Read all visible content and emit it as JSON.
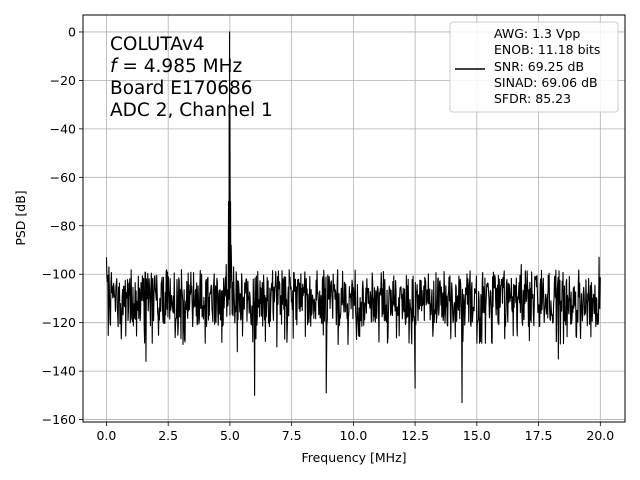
{
  "chart_data": {
    "type": "line",
    "xlabel": "Frequency [MHz]",
    "ylabel": "PSD [dB]",
    "xlim": [
      -0.95,
      21.0
    ],
    "ylim": [
      -161,
      7
    ],
    "grid": true,
    "xticks": [
      0.0,
      2.5,
      5.0,
      7.5,
      10.0,
      12.5,
      15.0,
      17.5,
      20.0
    ],
    "xtick_labels": [
      "0.0",
      "2.5",
      "5.0",
      "7.5",
      "10.0",
      "12.5",
      "15.0",
      "17.5",
      "20.0"
    ],
    "yticks": [
      0,
      -20,
      -40,
      -60,
      -80,
      -100,
      -120,
      -140,
      -160
    ],
    "ytick_labels": [
      "0",
      "−20",
      "−40",
      "−60",
      "−80",
      "−100",
      "−120",
      "−140",
      "−160"
    ],
    "annotation": {
      "line1": "COLUTAv4",
      "line2_var": "f",
      "line2_rest": " = 4.985 MHz",
      "line3": "Board E170686",
      "line4": "ADC 2, Channel 1"
    },
    "legend": {
      "placement": "top-right",
      "lines": [
        "AWG: 1.3 Vpp",
        "ENOB: 11.18 bits",
        "SNR: 69.25 dB",
        "SINAD: 69.06 dB",
        "SFDR: 85.23"
      ]
    },
    "series": [
      {
        "color": "#000000",
        "fundamental": {
          "x": 4.985,
          "y": 0
        },
        "noise_floor_mean": -111,
        "noise_floor_band": [
          -125,
          -100
        ],
        "spurs": [
          {
            "x": 0.0,
            "y": -93
          },
          {
            "x": 0.1,
            "y": -97
          },
          {
            "x": 1.6,
            "y": -136
          },
          {
            "x": 3.1,
            "y": -129
          },
          {
            "x": 4.85,
            "y": -96
          },
          {
            "x": 4.95,
            "y": -86
          },
          {
            "x": 5.05,
            "y": -88
          },
          {
            "x": 5.15,
            "y": -97
          },
          {
            "x": 5.3,
            "y": -132
          },
          {
            "x": 6.0,
            "y": -150
          },
          {
            "x": 6.9,
            "y": -130
          },
          {
            "x": 8.9,
            "y": -149
          },
          {
            "x": 12.5,
            "y": -147
          },
          {
            "x": 14.4,
            "y": -153
          },
          {
            "x": 16.8,
            "y": -96
          },
          {
            "x": 18.3,
            "y": -135
          },
          {
            "x": 19.95,
            "y": -93
          }
        ]
      }
    ]
  }
}
